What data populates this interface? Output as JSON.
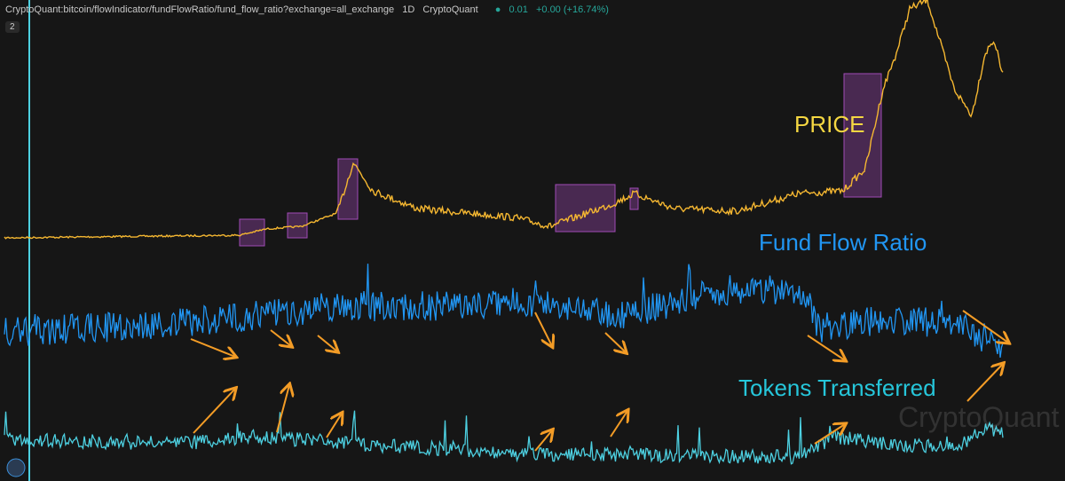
{
  "header": {
    "symbol": "CryptoQuant:bitcoin/flowIndicator/fundFlowRatio/fund_flow_ratio?exchange=all_exchange",
    "interval": "1D",
    "source": "CryptoQuant",
    "last": "0.01",
    "change": "+0.00 (+16.74%)"
  },
  "panel_badge": "2",
  "labels": {
    "price": "PRICE",
    "fund_flow_ratio": "Fund Flow Ratio",
    "tokens_transferred": "Tokens Transferred"
  },
  "watermark": "CryptoQuant"
}
